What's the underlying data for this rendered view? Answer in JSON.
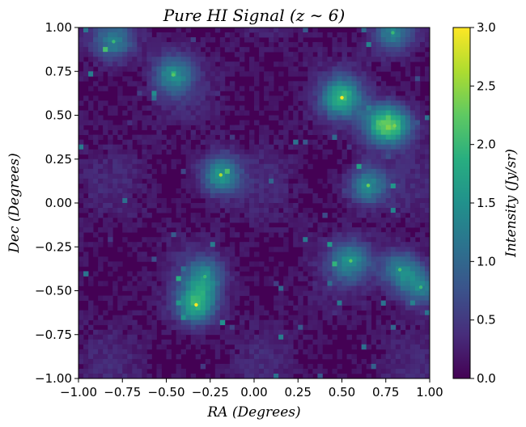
{
  "chart_data": {
    "type": "heatmap",
    "title": "Pure HI Signal (z ∼ 6)",
    "xlabel": "RA (Degrees)",
    "ylabel": "Dec (Degrees)",
    "colorbar_label": "Intensity (Jy/sr)",
    "colormap": "viridis",
    "xlim": [
      -1.0,
      1.0
    ],
    "ylim": [
      -1.0,
      1.0
    ],
    "clim": [
      0.0,
      3.0
    ],
    "x_ticks": [
      "−1.00",
      "−0.75",
      "−0.50",
      "−0.25",
      "0.00",
      "0.25",
      "0.50",
      "0.75",
      "1.00"
    ],
    "y_ticks": [
      "−1.00",
      "−0.75",
      "−0.50",
      "−0.25",
      "0.00",
      "0.25",
      "0.50",
      "0.75",
      "1.00"
    ],
    "colorbar_ticks": [
      "0.0",
      "0.5",
      "1.0",
      "1.5",
      "2.0",
      "2.5",
      "3.0"
    ],
    "bright_spots": [
      {
        "x": 0.5,
        "y": 0.6,
        "value": 3.0
      },
      {
        "x": -0.33,
        "y": -0.58,
        "value": 3.0
      },
      {
        "x": -0.19,
        "y": 0.16,
        "value": 2.6
      },
      {
        "x": 0.72,
        "y": 0.45,
        "value": 2.2
      },
      {
        "x": 0.8,
        "y": 0.44,
        "value": 2.4
      },
      {
        "x": 0.65,
        "y": 0.1,
        "value": 2.3
      },
      {
        "x": -0.28,
        "y": -0.42,
        "value": 2.0
      },
      {
        "x": 0.55,
        "y": -0.33,
        "value": 2.2
      },
      {
        "x": 0.83,
        "y": -0.38,
        "value": 2.1
      },
      {
        "x": 0.95,
        "y": -0.48,
        "value": 2.0
      },
      {
        "x": -0.8,
        "y": 0.92,
        "value": 2.0
      },
      {
        "x": 0.79,
        "y": 0.97,
        "value": 2.0
      },
      {
        "x": -0.46,
        "y": 0.73,
        "value": 2.2
      }
    ]
  }
}
